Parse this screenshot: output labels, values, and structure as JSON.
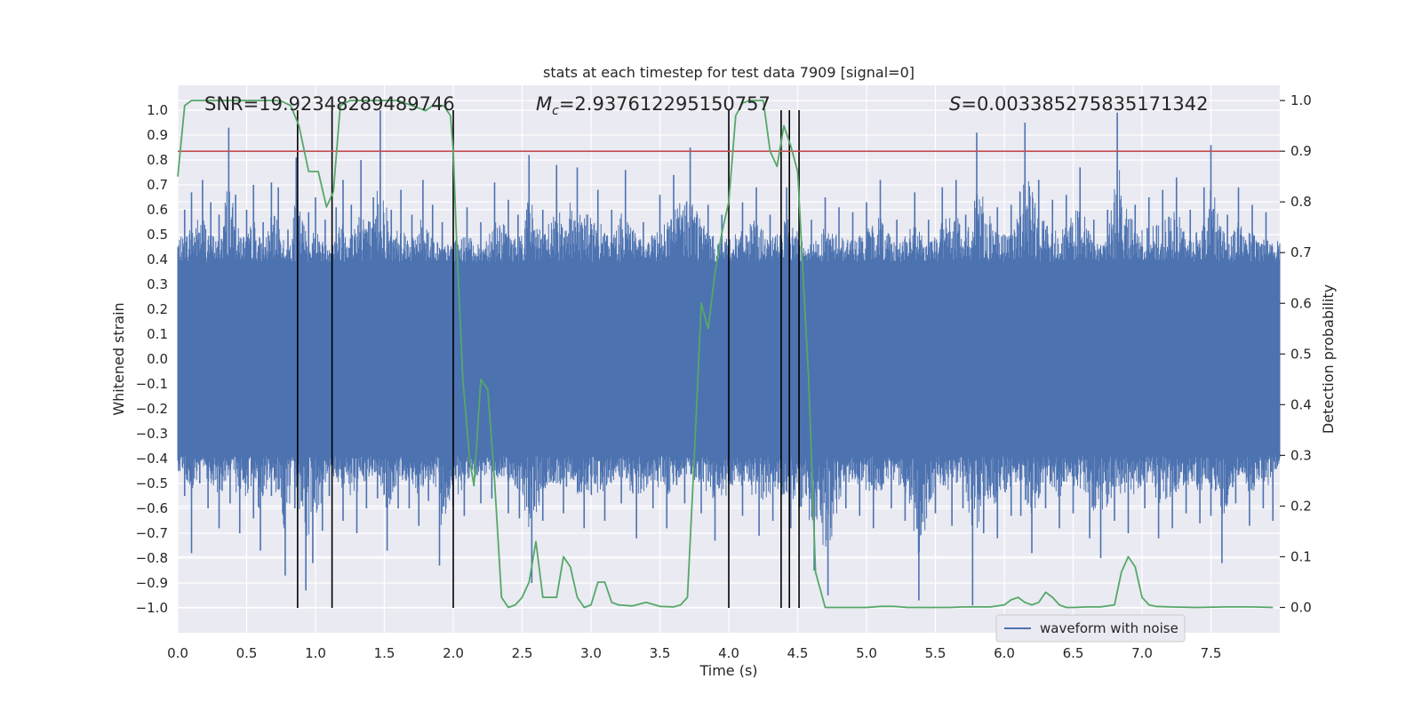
{
  "chart_data": {
    "type": "line",
    "title": "stats at each timestep for test data 7909 [signal=0]",
    "xlabel": "Time (s)",
    "ylabel": "Whitened strain",
    "ylabel_right": "Detection probability",
    "xlim": [
      0.0,
      8.0
    ],
    "ylim": [
      -1.1,
      1.1
    ],
    "ylim_right": [
      -0.05,
      1.03
    ],
    "x_ticks": [
      0.0,
      0.5,
      1.0,
      1.5,
      2.0,
      2.5,
      3.0,
      3.5,
      4.0,
      4.5,
      5.0,
      5.5,
      6.0,
      6.5,
      7.0,
      7.5
    ],
    "x_tick_labels": [
      "0.0",
      "0.5",
      "1.0",
      "1.5",
      "2.0",
      "2.5",
      "3.0",
      "3.5",
      "4.0",
      "4.5",
      "5.0",
      "5.5",
      "6.0",
      "6.5",
      "7.0",
      "7.5"
    ],
    "y_ticks": [
      1.0,
      0.9,
      0.8,
      0.7,
      0.6,
      0.5,
      0.4,
      0.3,
      0.2,
      0.1,
      0.0,
      -0.1,
      -0.2,
      -0.3,
      -0.4,
      -0.5,
      -0.6,
      -0.7,
      -0.8,
      -0.9,
      -1.0
    ],
    "y_tick_labels": [
      "1.0",
      "0.9",
      "0.8",
      "0.7",
      "0.6",
      "0.5",
      "0.4",
      "0.3",
      "0.2",
      "0.1",
      "0.0",
      "−0.1",
      "−0.2",
      "−0.3",
      "−0.4",
      "−0.5",
      "−0.6",
      "−0.7",
      "−0.8",
      "−0.9",
      "−1.0"
    ],
    "y_right_ticks": [
      1.0,
      0.9,
      0.8,
      0.7,
      0.6,
      0.5,
      0.4,
      0.3,
      0.2,
      0.1,
      0.0
    ],
    "y_right_tick_labels": [
      "1.0",
      "0.9",
      "0.8",
      "0.7",
      "0.6",
      "0.5",
      "0.4",
      "0.3",
      "0.2",
      "0.1",
      "0.0"
    ],
    "grid": true,
    "legend": {
      "placement": "lower-right",
      "entries": [
        {
          "name": "waveform with noise",
          "color": "#4c72b0"
        }
      ]
    },
    "annotations": [
      {
        "label": "SNR",
        "value": "=19.92348289489746"
      },
      {
        "label": "M",
        "sub": "c",
        "value": "=2.937612295150757"
      },
      {
        "label": "S",
        "value": "=0.003385275835171342"
      }
    ],
    "threshold": {
      "axis": "right",
      "value": 0.9,
      "color": "#c44e52"
    },
    "vertical_lines_x": [
      0.87,
      1.12,
      2.0,
      4.0,
      4.38,
      4.44,
      4.51
    ],
    "waveform": {
      "name": "waveform with noise",
      "color": "#4c72b0",
      "band": 0.39,
      "peaks": [
        {
          "x": 0.05,
          "y": 0.6
        },
        {
          "x": 0.1,
          "y": 0.67
        },
        {
          "x": 0.18,
          "y": 0.72
        },
        {
          "x": 0.24,
          "y": 0.63
        },
        {
          "x": 0.3,
          "y": 0.58
        },
        {
          "x": 0.37,
          "y": 0.93
        },
        {
          "x": 0.42,
          "y": 0.66
        },
        {
          "x": 0.5,
          "y": 0.6
        },
        {
          "x": 0.55,
          "y": 0.7
        },
        {
          "x": 0.62,
          "y": 0.55
        },
        {
          "x": 0.68,
          "y": 0.71
        },
        {
          "x": 0.73,
          "y": 0.69
        },
        {
          "x": 0.8,
          "y": 0.52
        },
        {
          "x": 0.86,
          "y": 0.81
        },
        {
          "x": 0.95,
          "y": 0.59
        },
        {
          "x": 1.0,
          "y": 0.65
        },
        {
          "x": 1.07,
          "y": 0.56
        },
        {
          "x": 1.15,
          "y": 0.61
        },
        {
          "x": 1.2,
          "y": 0.72
        },
        {
          "x": 1.26,
          "y": 0.62
        },
        {
          "x": 1.33,
          "y": 0.8
        },
        {
          "x": 1.42,
          "y": 0.65
        },
        {
          "x": 1.47,
          "y": 1.0
        },
        {
          "x": 1.55,
          "y": 0.6
        },
        {
          "x": 1.62,
          "y": 0.68
        },
        {
          "x": 1.7,
          "y": 0.58
        },
        {
          "x": 1.78,
          "y": 0.72
        },
        {
          "x": 1.85,
          "y": 0.62
        },
        {
          "x": 1.92,
          "y": 0.55
        },
        {
          "x": 2.1,
          "y": 0.61
        },
        {
          "x": 2.2,
          "y": 0.55
        },
        {
          "x": 2.3,
          "y": 0.71
        },
        {
          "x": 2.4,
          "y": 0.64
        },
        {
          "x": 2.47,
          "y": 0.58
        },
        {
          "x": 2.55,
          "y": 0.82
        },
        {
          "x": 2.65,
          "y": 0.6
        },
        {
          "x": 2.75,
          "y": 0.78
        },
        {
          "x": 2.9,
          "y": 0.77
        },
        {
          "x": 3.05,
          "y": 0.68
        },
        {
          "x": 3.15,
          "y": 0.6
        },
        {
          "x": 3.25,
          "y": 0.76
        },
        {
          "x": 3.38,
          "y": 0.55
        },
        {
          "x": 3.5,
          "y": 0.66
        },
        {
          "x": 3.6,
          "y": 0.74
        },
        {
          "x": 3.72,
          "y": 0.85
        },
        {
          "x": 3.85,
          "y": 0.62
        },
        {
          "x": 3.95,
          "y": 0.58
        },
        {
          "x": 4.1,
          "y": 0.63
        },
        {
          "x": 4.2,
          "y": 0.69
        },
        {
          "x": 4.3,
          "y": 0.58
        },
        {
          "x": 4.42,
          "y": 0.69
        },
        {
          "x": 4.6,
          "y": 0.56
        },
        {
          "x": 4.7,
          "y": 0.65
        },
        {
          "x": 4.8,
          "y": 0.61
        },
        {
          "x": 4.9,
          "y": 0.59
        },
        {
          "x": 5.0,
          "y": 0.63
        },
        {
          "x": 5.1,
          "y": 0.72
        },
        {
          "x": 5.22,
          "y": 0.56
        },
        {
          "x": 5.35,
          "y": 0.67
        },
        {
          "x": 5.45,
          "y": 0.56
        },
        {
          "x": 5.55,
          "y": 0.69
        },
        {
          "x": 5.65,
          "y": 0.72
        },
        {
          "x": 5.72,
          "y": 0.58
        },
        {
          "x": 5.8,
          "y": 0.91
        },
        {
          "x": 5.95,
          "y": 0.61
        },
        {
          "x": 6.05,
          "y": 0.62
        },
        {
          "x": 6.15,
          "y": 0.95
        },
        {
          "x": 6.25,
          "y": 0.72
        },
        {
          "x": 6.35,
          "y": 0.64
        },
        {
          "x": 6.45,
          "y": 0.66
        },
        {
          "x": 6.55,
          "y": 0.77
        },
        {
          "x": 6.65,
          "y": 0.56
        },
        {
          "x": 6.75,
          "y": 0.6
        },
        {
          "x": 6.82,
          "y": 0.99
        },
        {
          "x": 6.95,
          "y": 0.62
        },
        {
          "x": 7.05,
          "y": 0.65
        },
        {
          "x": 7.15,
          "y": 0.68
        },
        {
          "x": 7.25,
          "y": 0.73
        },
        {
          "x": 7.35,
          "y": 0.6
        },
        {
          "x": 7.45,
          "y": 0.69
        },
        {
          "x": 7.5,
          "y": 0.86
        },
        {
          "x": 7.62,
          "y": 0.58
        },
        {
          "x": 7.7,
          "y": 0.69
        },
        {
          "x": 7.8,
          "y": 0.62
        },
        {
          "x": 7.9,
          "y": 0.59
        }
      ],
      "troughs": [
        {
          "x": 0.05,
          "y": -0.55
        },
        {
          "x": 0.1,
          "y": -0.78
        },
        {
          "x": 0.16,
          "y": -0.5
        },
        {
          "x": 0.22,
          "y": -0.6
        },
        {
          "x": 0.3,
          "y": -0.68
        },
        {
          "x": 0.38,
          "y": -0.58
        },
        {
          "x": 0.45,
          "y": -0.7
        },
        {
          "x": 0.55,
          "y": -0.64
        },
        {
          "x": 0.6,
          "y": -0.77
        },
        {
          "x": 0.68,
          "y": -0.55
        },
        {
          "x": 0.78,
          "y": -0.87
        },
        {
          "x": 0.85,
          "y": -0.6
        },
        {
          "x": 0.93,
          "y": -0.93
        },
        {
          "x": 0.98,
          "y": -0.82
        },
        {
          "x": 1.05,
          "y": -0.69
        },
        {
          "x": 1.1,
          "y": -0.55
        },
        {
          "x": 1.2,
          "y": -0.65
        },
        {
          "x": 1.3,
          "y": -0.7
        },
        {
          "x": 1.37,
          "y": -0.6
        },
        {
          "x": 1.45,
          "y": -0.56
        },
        {
          "x": 1.52,
          "y": -0.77
        },
        {
          "x": 1.6,
          "y": -0.6
        },
        {
          "x": 1.68,
          "y": -0.6
        },
        {
          "x": 1.75,
          "y": -0.67
        },
        {
          "x": 1.82,
          "y": -0.57
        },
        {
          "x": 1.9,
          "y": -0.83
        },
        {
          "x": 2.08,
          "y": -0.63
        },
        {
          "x": 2.2,
          "y": -0.58
        },
        {
          "x": 2.28,
          "y": -0.56
        },
        {
          "x": 2.4,
          "y": -0.62
        },
        {
          "x": 2.48,
          "y": -0.64
        },
        {
          "x": 2.57,
          "y": -0.9
        },
        {
          "x": 2.65,
          "y": -0.65
        },
        {
          "x": 2.8,
          "y": -0.62
        },
        {
          "x": 2.95,
          "y": -0.68
        },
        {
          "x": 3.1,
          "y": -0.65
        },
        {
          "x": 3.22,
          "y": -0.58
        },
        {
          "x": 3.33,
          "y": -0.72
        },
        {
          "x": 3.45,
          "y": -0.6
        },
        {
          "x": 3.55,
          "y": -0.68
        },
        {
          "x": 3.68,
          "y": -0.58
        },
        {
          "x": 3.8,
          "y": -0.62
        },
        {
          "x": 3.9,
          "y": -0.73
        },
        {
          "x": 4.1,
          "y": -0.63
        },
        {
          "x": 4.22,
          "y": -0.71
        },
        {
          "x": 4.32,
          "y": -0.65
        },
        {
          "x": 4.45,
          "y": -0.68
        },
        {
          "x": 4.62,
          "y": -0.85
        },
        {
          "x": 4.72,
          "y": -0.95
        },
        {
          "x": 4.85,
          "y": -0.6
        },
        {
          "x": 4.95,
          "y": -0.63
        },
        {
          "x": 5.05,
          "y": -0.68
        },
        {
          "x": 5.18,
          "y": -0.6
        },
        {
          "x": 5.28,
          "y": -0.65
        },
        {
          "x": 5.38,
          "y": -0.97
        },
        {
          "x": 5.5,
          "y": -0.62
        },
        {
          "x": 5.62,
          "y": -0.67
        },
        {
          "x": 5.7,
          "y": -0.6
        },
        {
          "x": 5.77,
          "y": -0.99
        },
        {
          "x": 5.85,
          "y": -0.7
        },
        {
          "x": 5.95,
          "y": -0.72
        },
        {
          "x": 6.05,
          "y": -0.63
        },
        {
          "x": 6.12,
          "y": -0.63
        },
        {
          "x": 6.2,
          "y": -0.78
        },
        {
          "x": 6.3,
          "y": -0.6
        },
        {
          "x": 6.4,
          "y": -0.68
        },
        {
          "x": 6.5,
          "y": -0.62
        },
        {
          "x": 6.62,
          "y": -0.72
        },
        {
          "x": 6.7,
          "y": -0.8
        },
        {
          "x": 6.8,
          "y": -0.65
        },
        {
          "x": 6.9,
          "y": -0.7
        },
        {
          "x": 7.02,
          "y": -0.6
        },
        {
          "x": 7.12,
          "y": -0.72
        },
        {
          "x": 7.22,
          "y": -0.68
        },
        {
          "x": 7.32,
          "y": -0.62
        },
        {
          "x": 7.42,
          "y": -0.66
        },
        {
          "x": 7.5,
          "y": -0.63
        },
        {
          "x": 7.58,
          "y": -0.82
        },
        {
          "x": 7.68,
          "y": -0.58
        },
        {
          "x": 7.78,
          "y": -0.67
        },
        {
          "x": 7.88,
          "y": -0.6
        },
        {
          "x": 7.95,
          "y": -0.65
        }
      ]
    },
    "detection_probability": {
      "color": "#55a868",
      "x": [
        0.0,
        0.05,
        0.1,
        0.2,
        0.3,
        0.5,
        0.6,
        0.7,
        0.75,
        0.82,
        0.88,
        0.95,
        1.02,
        1.08,
        1.13,
        1.18,
        1.25,
        1.4,
        1.6,
        1.7,
        1.8,
        1.85,
        1.93,
        1.98,
        2.0,
        2.02,
        2.07,
        2.12,
        2.15,
        2.2,
        2.25,
        2.3,
        2.35,
        2.4,
        2.45,
        2.5,
        2.55,
        2.6,
        2.65,
        2.7,
        2.75,
        2.8,
        2.85,
        2.9,
        2.95,
        3.0,
        3.05,
        3.1,
        3.15,
        3.2,
        3.3,
        3.4,
        3.5,
        3.6,
        3.65,
        3.7,
        3.75,
        3.8,
        3.85,
        3.9,
        3.95,
        4.0,
        4.05,
        4.1,
        4.15,
        4.2,
        4.25,
        4.3,
        4.35,
        4.4,
        4.45,
        4.5,
        4.55,
        4.58,
        4.63,
        4.7,
        4.8,
        4.9,
        5.0,
        5.1,
        5.2,
        5.3,
        5.4,
        5.5,
        5.6,
        5.7,
        5.8,
        5.9,
        6.0,
        6.05,
        6.1,
        6.15,
        6.2,
        6.25,
        6.3,
        6.35,
        6.4,
        6.45,
        6.5,
        6.6,
        6.7,
        6.8,
        6.85,
        6.9,
        6.95,
        7.0,
        7.05,
        7.1,
        7.2,
        7.4,
        7.6,
        7.8,
        7.95
      ],
      "y": [
        0.85,
        0.99,
        1.0,
        1.0,
        1.0,
        1.0,
        1.0,
        1.0,
        0.999,
        0.99,
        0.95,
        0.86,
        0.86,
        0.79,
        0.82,
        0.99,
        1.0,
        1.0,
        1.0,
        0.99,
        0.98,
        0.99,
        0.99,
        0.97,
        0.9,
        0.75,
        0.45,
        0.29,
        0.24,
        0.45,
        0.43,
        0.25,
        0.02,
        0.0,
        0.005,
        0.02,
        0.05,
        0.13,
        0.02,
        0.02,
        0.02,
        0.1,
        0.08,
        0.02,
        0.0,
        0.005,
        0.05,
        0.05,
        0.01,
        0.005,
        0.003,
        0.01,
        0.002,
        0.001,
        0.005,
        0.02,
        0.3,
        0.6,
        0.55,
        0.66,
        0.74,
        0.8,
        0.97,
        0.995,
        1.0,
        1.0,
        1.0,
        0.9,
        0.87,
        0.95,
        0.91,
        0.86,
        0.6,
        0.45,
        0.07,
        0.0,
        0.0,
        0.0,
        0.0,
        0.002,
        0.002,
        0.0,
        0.0,
        0.0,
        0.0,
        0.001,
        0.001,
        0.001,
        0.005,
        0.015,
        0.02,
        0.01,
        0.005,
        0.01,
        0.03,
        0.02,
        0.005,
        0.0,
        0.0,
        0.001,
        0.001,
        0.005,
        0.07,
        0.1,
        0.08,
        0.02,
        0.005,
        0.002,
        0.001,
        0.0,
        0.001,
        0.001,
        0.0
      ]
    }
  }
}
